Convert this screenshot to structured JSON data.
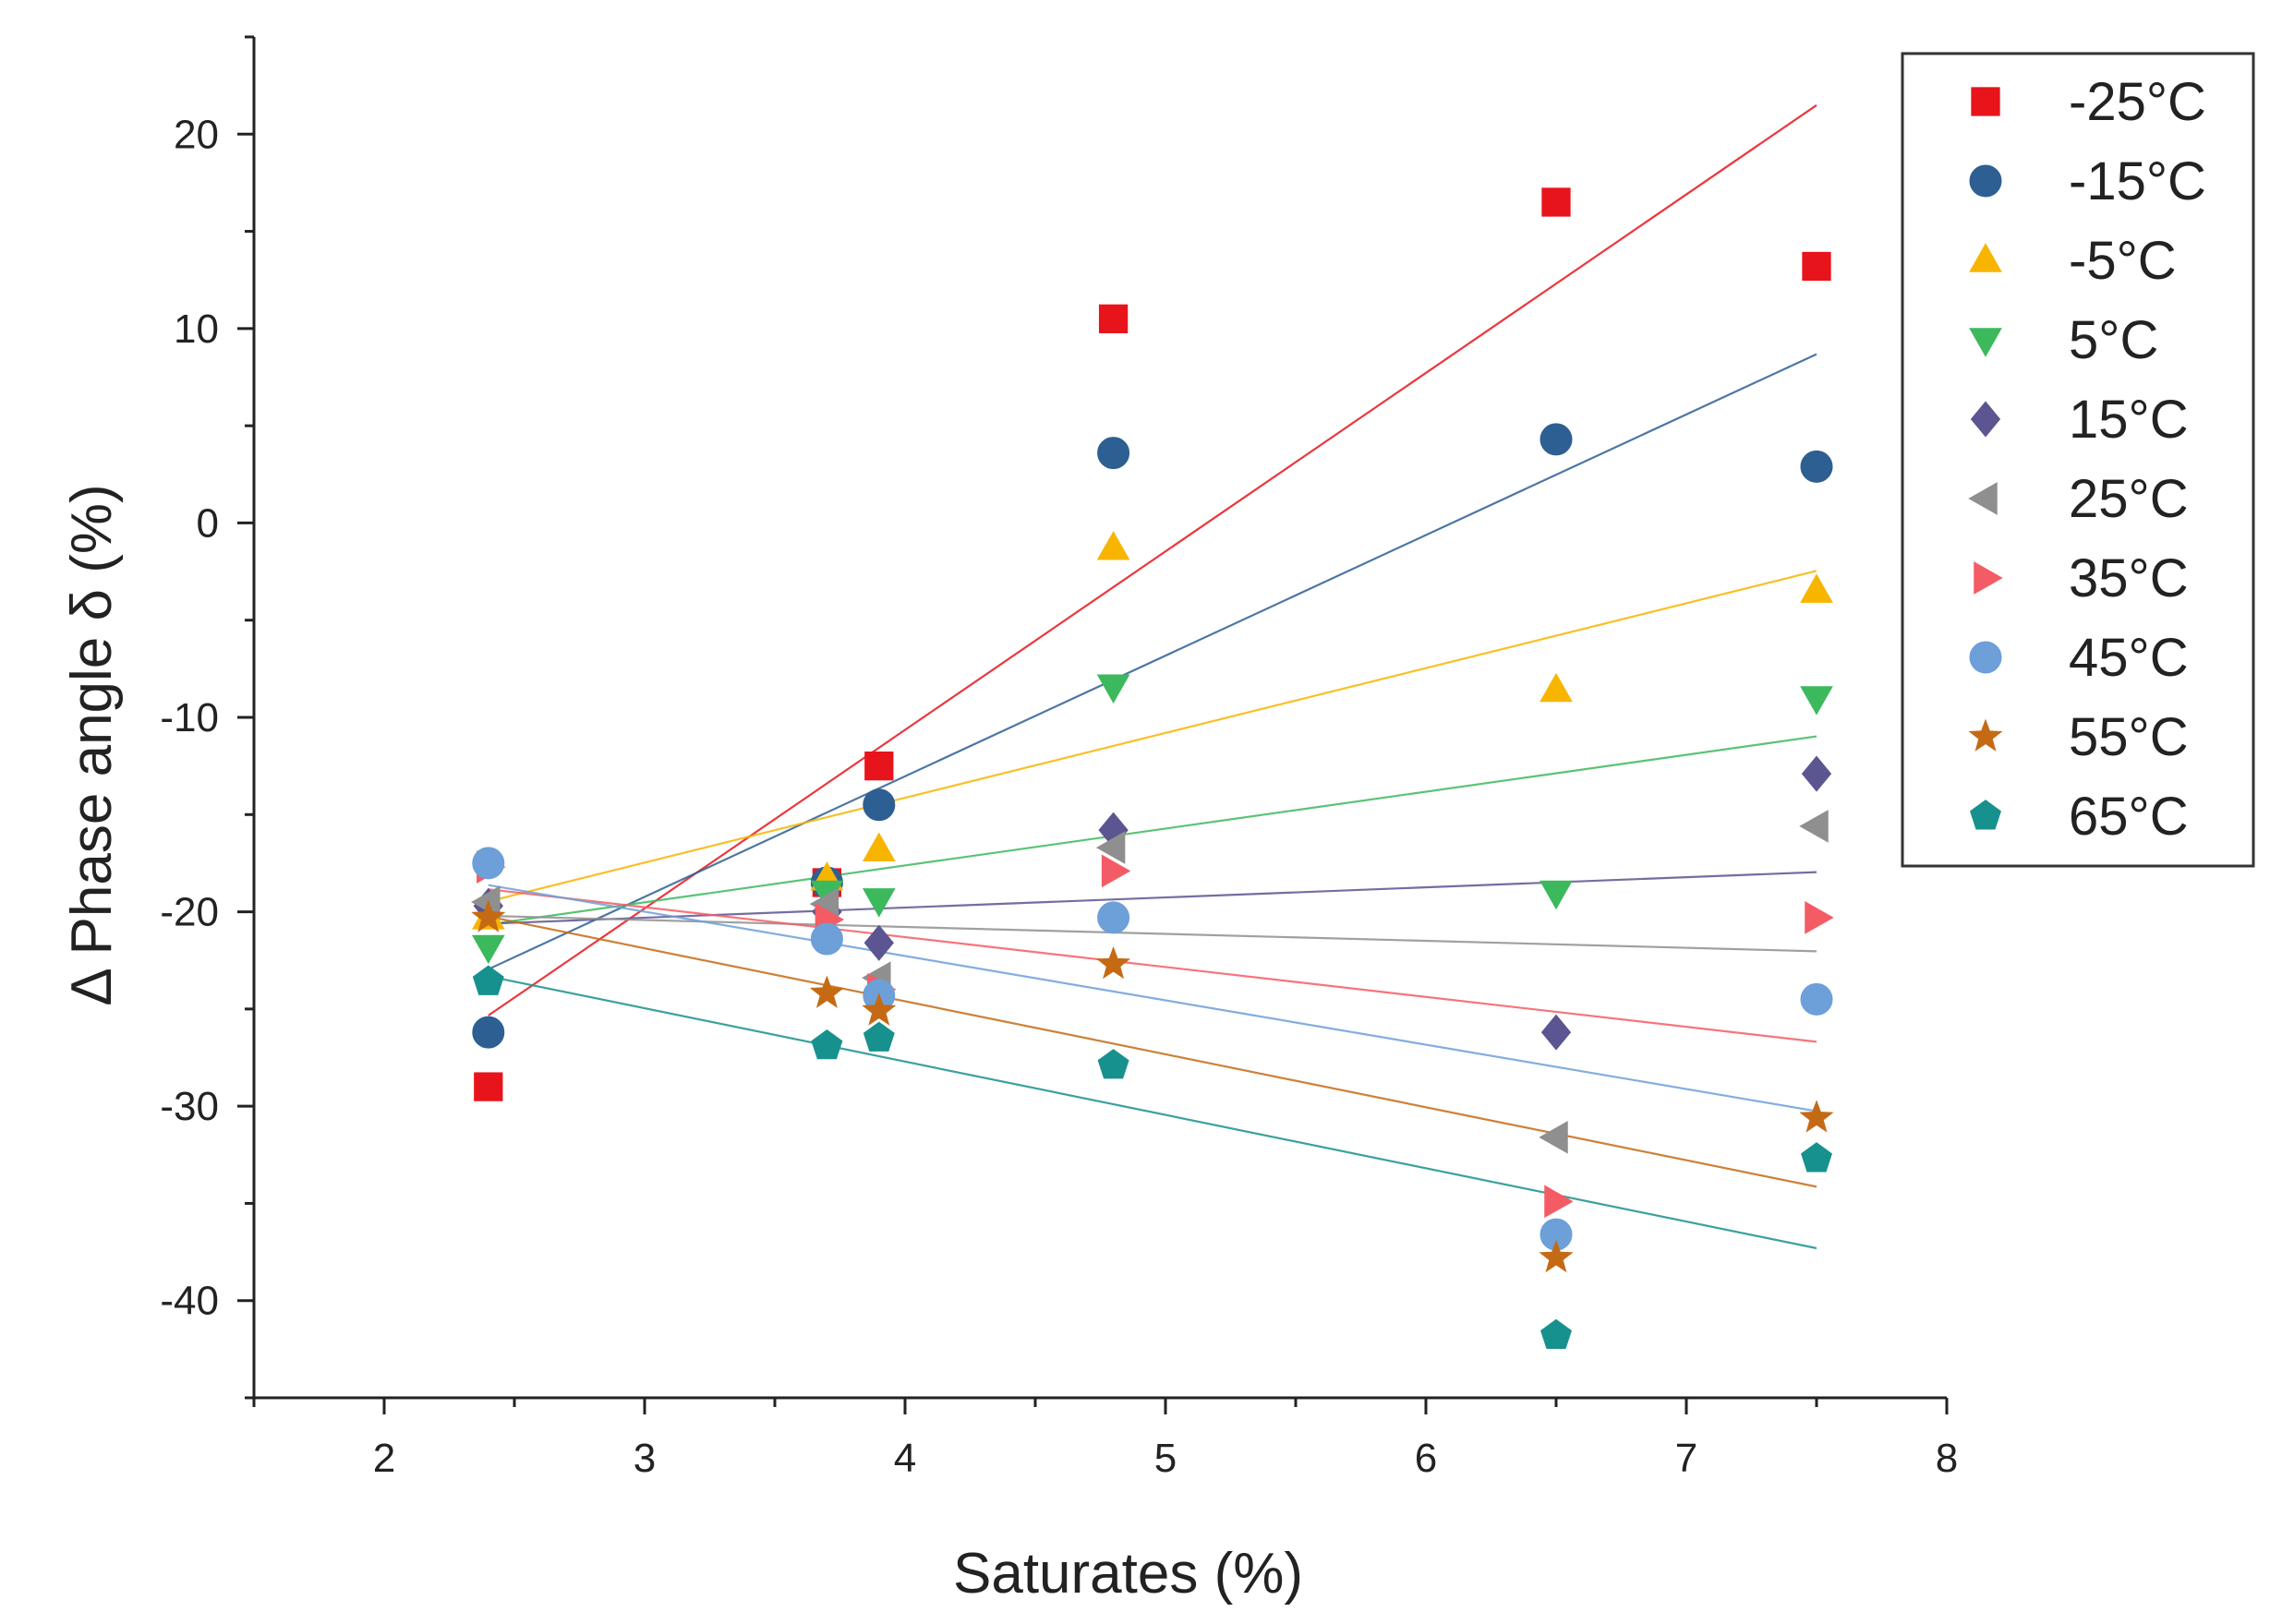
{
  "chart_data": {
    "type": "scatter",
    "title": "",
    "xlabel": "Saturates (%)",
    "ylabel": "Δ Phase angle δ (%)",
    "xlim": [
      1.5,
      8
    ],
    "ylim": [
      -45,
      25
    ],
    "xticks": [
      2,
      3,
      4,
      5,
      6,
      7,
      8
    ],
    "yticks": [
      -40,
      -30,
      -20,
      -10,
      0,
      10,
      20
    ],
    "legend_position": "top-right",
    "fit": "linear",
    "x": [
      2.4,
      3.7,
      3.9,
      4.8,
      6.5,
      7.5
    ],
    "series": [
      {
        "name": "-25°C",
        "marker": "square",
        "color": "#e8141b",
        "values": [
          -29.0,
          -18.5,
          -12.5,
          10.5,
          16.5,
          13.2
        ]
      },
      {
        "name": "-15°C",
        "marker": "circle",
        "color": "#2d5f93",
        "values": [
          -26.2,
          -18.5,
          -14.5,
          3.6,
          4.3,
          2.9
        ]
      },
      {
        "name": "-5°C",
        "marker": "triangle-up",
        "color": "#f7b500",
        "values": [
          -20.3,
          -18.3,
          -16.8,
          -1.3,
          -8.6,
          -3.5
        ]
      },
      {
        "name": "5°C",
        "marker": "triangle-down",
        "color": "#3cb95c",
        "values": [
          -21.8,
          -19.0,
          -19.4,
          -8.4,
          -19.0,
          -9.0
        ]
      },
      {
        "name": "15°C",
        "marker": "diamond",
        "color": "#5b5591",
        "values": [
          -19.7,
          -20.0,
          -21.6,
          -15.8,
          -26.2,
          -12.9
        ]
      },
      {
        "name": "25°C",
        "marker": "triangle-left",
        "color": "#8f8f8f",
        "values": [
          -19.5,
          -19.6,
          -23.4,
          -16.7,
          -31.6,
          -15.6
        ]
      },
      {
        "name": "35°C",
        "marker": "triangle-right",
        "color": "#f45c65",
        "values": [
          -17.7,
          -20.4,
          -24.0,
          -17.9,
          -34.9,
          -20.3
        ]
      },
      {
        "name": "45°C",
        "marker": "circle",
        "color": "#6d9fd8",
        "values": [
          -17.5,
          -21.4,
          -24.3,
          -20.3,
          -36.6,
          -24.5
        ]
      },
      {
        "name": "55°C",
        "marker": "star",
        "color": "#c56a14",
        "values": [
          -20.3,
          -24.2,
          -25.1,
          -22.7,
          -37.8,
          -30.6
        ]
      },
      {
        "name": "65°C",
        "marker": "pentagon",
        "color": "#17918d",
        "values": [
          -23.6,
          -26.9,
          -26.5,
          -27.9,
          -41.8,
          -32.7
        ]
      }
    ]
  }
}
